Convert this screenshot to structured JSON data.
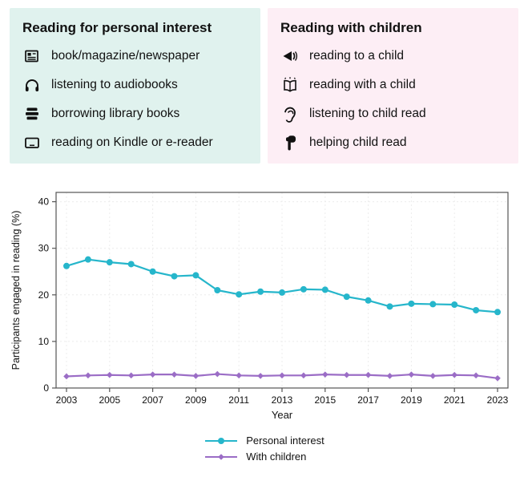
{
  "panels": [
    {
      "title": "Reading for personal interest",
      "bg": "#e0f2ee",
      "items": [
        {
          "icon": "newspaper-icon",
          "label": "book/magazine/newspaper"
        },
        {
          "icon": "headphones-icon",
          "label": "listening to audiobooks"
        },
        {
          "icon": "library-books-icon",
          "label": "borrowing library books"
        },
        {
          "icon": "ereader-icon",
          "label": "reading on Kindle or e-reader"
        }
      ]
    },
    {
      "title": "Reading with children",
      "bg": "#fdeef5",
      "items": [
        {
          "icon": "reading-aloud-icon",
          "label": "reading to a child"
        },
        {
          "icon": "open-book-icon",
          "label": "reading with a child"
        },
        {
          "icon": "ear-icon",
          "label": "listening to child read"
        },
        {
          "icon": "pointing-hand-icon",
          "label": "helping child read"
        }
      ]
    }
  ],
  "chart_data": {
    "type": "line",
    "title": "",
    "xlabel": "Year",
    "ylabel": "Participants engaged in reading (%)",
    "ylim": [
      0,
      42
    ],
    "yticks": [
      0,
      10,
      20,
      30,
      40
    ],
    "xticks": [
      2003,
      2005,
      2007,
      2009,
      2011,
      2013,
      2015,
      2017,
      2019,
      2021,
      2023
    ],
    "grid": true,
    "legend_position": "bottom",
    "x": [
      2003,
      2004,
      2005,
      2006,
      2007,
      2008,
      2009,
      2010,
      2011,
      2012,
      2013,
      2014,
      2015,
      2016,
      2017,
      2018,
      2019,
      2020,
      2021,
      2022,
      2023
    ],
    "series": [
      {
        "name": "Personal interest",
        "color": "#26b6cb",
        "marker": "circle",
        "values": [
          26.2,
          27.6,
          27.0,
          26.6,
          25.0,
          24.0,
          24.2,
          21.0,
          20.1,
          20.7,
          20.5,
          21.2,
          21.1,
          19.6,
          18.8,
          17.5,
          18.1,
          18.0,
          17.9,
          16.7,
          16.3
        ]
      },
      {
        "name": "With children",
        "color": "#9b6dc6",
        "marker": "diamond",
        "values": [
          2.5,
          2.7,
          2.8,
          2.7,
          2.9,
          2.9,
          2.6,
          3.0,
          2.7,
          2.6,
          2.7,
          2.7,
          2.9,
          2.8,
          2.8,
          2.6,
          2.9,
          2.6,
          2.8,
          2.7,
          2.1
        ]
      }
    ]
  }
}
